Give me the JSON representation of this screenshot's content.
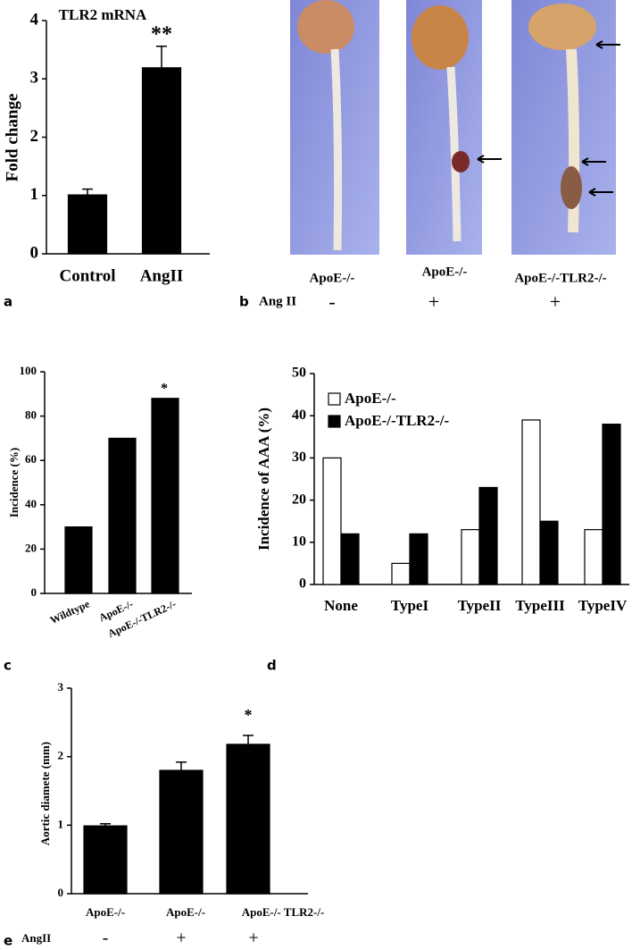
{
  "chart_data": [
    {
      "type": "bar",
      "panel": "a",
      "title": "TLR2 mRNA",
      "ylabel": "Fold change",
      "categories": [
        "Control",
        "AngII"
      ],
      "values": [
        1.01,
        3.19
      ],
      "errors": [
        0.1,
        0.37
      ],
      "color": "#000000",
      "ylim": [
        0,
        4
      ],
      "yticks": [
        0,
        1,
        2,
        3,
        4
      ],
      "annotations": [
        "**"
      ]
    },
    {
      "type": "bar",
      "panel": "c",
      "ylabel": "Incidence (%)",
      "categories": [
        "Wildtype",
        "ApoE-/-",
        "ApoE-/-TLR2-/-"
      ],
      "values": [
        30,
        70,
        88
      ],
      "color": "#000000",
      "ylim": [
        0,
        100
      ],
      "yticks": [
        0,
        20,
        40,
        60,
        80,
        100
      ],
      "annotations": [
        "*"
      ]
    },
    {
      "type": "grouped-bar",
      "panel": "d",
      "ylabel": "Incidence  of AAA (%)",
      "categories": [
        "None",
        "TypeI",
        "TypeII",
        "TypeIII",
        "TypeIV"
      ],
      "series": [
        {
          "name": "ApoE-/-",
          "color": "#ffffff",
          "values": [
            30,
            5,
            13,
            39,
            13
          ]
        },
        {
          "name": "ApoE-/-TLR2-/-",
          "color": "#000000",
          "values": [
            12,
            12,
            23,
            15,
            38
          ]
        }
      ],
      "ylim": [
        0,
        50
      ],
      "yticks": [
        0,
        10,
        20,
        30,
        40,
        50
      ],
      "legend": "upper left"
    },
    {
      "type": "bar",
      "panel": "e",
      "ylabel": "Aortic diamete (mm)",
      "categories": [
        "ApoE-/-",
        "ApoE-/-",
        "ApoE-/- TLR2-/-"
      ],
      "values": [
        0.99,
        1.8,
        2.18
      ],
      "errors": [
        0.03,
        0.12,
        0.13
      ],
      "color": "#000000",
      "ylim": [
        0,
        3
      ],
      "yticks": [
        0,
        1,
        2,
        3
      ],
      "annotations": [
        "*"
      ],
      "condition_label": "AngII",
      "condition": [
        "-",
        "+",
        "+"
      ]
    }
  ],
  "panel_b": {
    "label": "b",
    "genotypes": [
      "ApoE-/-",
      "ApoE-/-",
      "ApoE-/-TLR2-/-"
    ],
    "condition_label": "Ang II",
    "condition": [
      "-",
      "+",
      "+"
    ]
  }
}
